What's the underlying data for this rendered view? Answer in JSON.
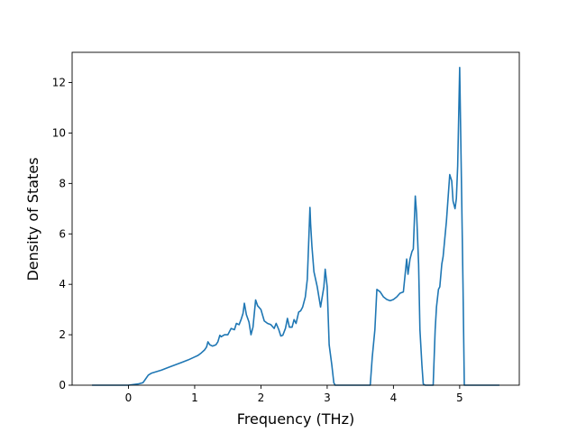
{
  "chart_data": {
    "type": "line",
    "title": "",
    "xlabel": "Frequency (THz)",
    "ylabel": "Density of States",
    "xlim": [
      -0.85,
      5.9
    ],
    "ylim": [
      0,
      13.2
    ],
    "xticks": [
      0,
      1,
      2,
      3,
      4,
      5
    ],
    "yticks": [
      0,
      2,
      4,
      6,
      8,
      10,
      12
    ],
    "grid": false,
    "legend": "none",
    "series": [
      {
        "color": "#1f77b4",
        "x": [
          -0.55,
          0.0,
          0.15,
          0.22,
          0.26,
          0.3,
          0.35,
          0.4,
          0.5,
          0.6,
          0.7,
          0.8,
          0.9,
          1.0,
          1.05,
          1.1,
          1.15,
          1.18,
          1.2,
          1.23,
          1.27,
          1.32,
          1.35,
          1.38,
          1.4,
          1.45,
          1.5,
          1.55,
          1.6,
          1.63,
          1.67,
          1.7,
          1.73,
          1.75,
          1.78,
          1.82,
          1.85,
          1.88,
          1.92,
          1.95,
          2.0,
          2.05,
          2.1,
          2.15,
          2.2,
          2.23,
          2.27,
          2.3,
          2.33,
          2.37,
          2.4,
          2.43,
          2.47,
          2.5,
          2.53,
          2.57,
          2.6,
          2.63,
          2.67,
          2.7,
          2.72,
          2.74,
          2.75,
          2.77,
          2.8,
          2.85,
          2.9,
          2.95,
          2.97,
          3.0,
          3.03,
          3.07,
          3.1,
          3.12,
          3.15,
          3.2,
          3.65,
          3.68,
          3.72,
          3.75,
          3.8,
          3.85,
          3.9,
          3.95,
          4.0,
          4.05,
          4.1,
          4.15,
          4.2,
          4.22,
          4.25,
          4.28,
          4.3,
          4.33,
          4.35,
          4.38,
          4.4,
          4.43,
          4.45,
          4.48,
          4.5,
          4.6,
          4.63,
          4.65,
          4.68,
          4.7,
          4.73,
          4.75,
          4.8,
          4.85,
          4.88,
          4.9,
          4.93,
          4.95,
          4.97,
          5.0,
          5.03,
          5.05,
          5.07,
          5.1,
          5.15,
          5.6
        ],
        "values": [
          0.0,
          0.0,
          0.05,
          0.1,
          0.25,
          0.4,
          0.48,
          0.52,
          0.6,
          0.7,
          0.8,
          0.9,
          1.0,
          1.12,
          1.18,
          1.28,
          1.4,
          1.52,
          1.72,
          1.6,
          1.55,
          1.6,
          1.72,
          1.98,
          1.92,
          2.0,
          2.0,
          2.25,
          2.2,
          2.45,
          2.4,
          2.6,
          2.85,
          3.25,
          2.8,
          2.5,
          2.0,
          2.3,
          3.38,
          3.15,
          3.0,
          2.55,
          2.45,
          2.4,
          2.25,
          2.45,
          2.2,
          1.95,
          1.98,
          2.25,
          2.65,
          2.3,
          2.3,
          2.6,
          2.45,
          2.9,
          2.95,
          3.1,
          3.5,
          4.2,
          5.6,
          7.05,
          6.4,
          5.5,
          4.5,
          3.9,
          3.1,
          3.9,
          4.6,
          3.9,
          1.6,
          0.8,
          0.1,
          0.0,
          0.0,
          0.0,
          0.0,
          1.1,
          2.2,
          3.8,
          3.7,
          3.5,
          3.4,
          3.35,
          3.4,
          3.5,
          3.65,
          3.7,
          5.0,
          4.4,
          5.0,
          5.3,
          5.4,
          7.5,
          6.8,
          4.8,
          2.2,
          0.8,
          0.05,
          0.0,
          0.0,
          0.0,
          2.2,
          3.1,
          3.8,
          3.9,
          4.8,
          5.1,
          6.5,
          8.35,
          8.1,
          7.3,
          7.0,
          7.4,
          8.7,
          12.6,
          7.5,
          4.0,
          0.0,
          0.0,
          0.0,
          0.0
        ]
      }
    ]
  }
}
